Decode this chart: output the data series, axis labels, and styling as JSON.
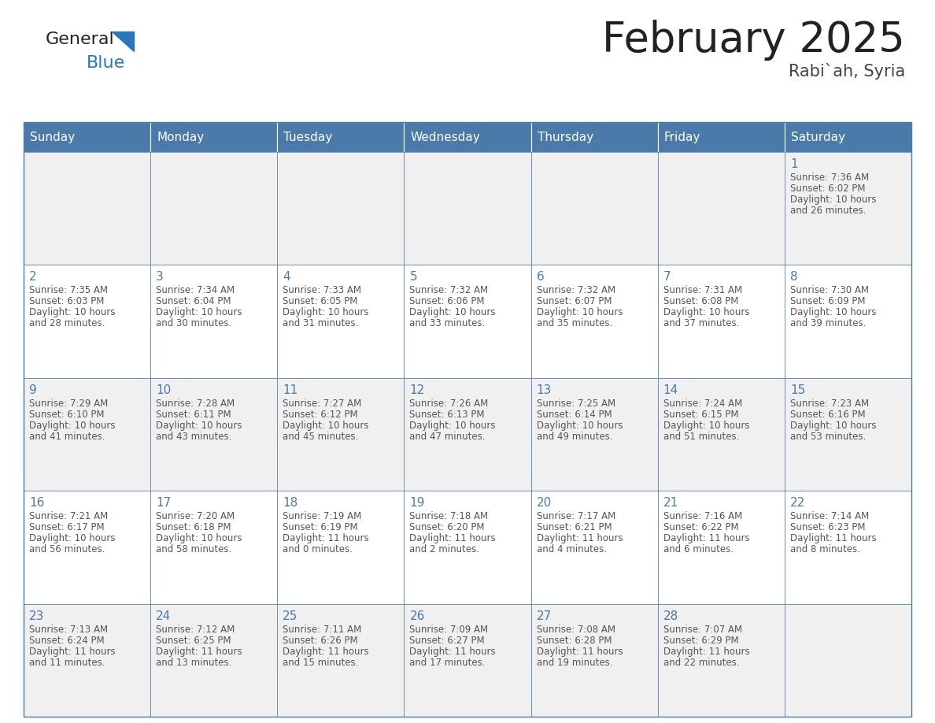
{
  "title": "February 2025",
  "subtitle": "Rabi`ah, Syria",
  "days_of_week": [
    "Sunday",
    "Monday",
    "Tuesday",
    "Wednesday",
    "Thursday",
    "Friday",
    "Saturday"
  ],
  "header_bg": "#4a7aaa",
  "header_text": "#ffffff",
  "cell_bg_even": "#f0f0f0",
  "cell_bg_odd": "#ffffff",
  "cell_border": "#4a7aaa",
  "day_number_color": "#4a7aaa",
  "text_color": "#555555",
  "title_color": "#222222",
  "subtitle_color": "#444444",
  "logo_general_color": "#222222",
  "logo_blue_color": "#2878be",
  "calendar_data": [
    [
      null,
      null,
      null,
      null,
      null,
      null,
      {
        "day": 1,
        "sunrise": "7:36 AM",
        "sunset": "6:02 PM",
        "daylight_hours": 10,
        "daylight_minutes": 26
      }
    ],
    [
      {
        "day": 2,
        "sunrise": "7:35 AM",
        "sunset": "6:03 PM",
        "daylight_hours": 10,
        "daylight_minutes": 28
      },
      {
        "day": 3,
        "sunrise": "7:34 AM",
        "sunset": "6:04 PM",
        "daylight_hours": 10,
        "daylight_minutes": 30
      },
      {
        "day": 4,
        "sunrise": "7:33 AM",
        "sunset": "6:05 PM",
        "daylight_hours": 10,
        "daylight_minutes": 31
      },
      {
        "day": 5,
        "sunrise": "7:32 AM",
        "sunset": "6:06 PM",
        "daylight_hours": 10,
        "daylight_minutes": 33
      },
      {
        "day": 6,
        "sunrise": "7:32 AM",
        "sunset": "6:07 PM",
        "daylight_hours": 10,
        "daylight_minutes": 35
      },
      {
        "day": 7,
        "sunrise": "7:31 AM",
        "sunset": "6:08 PM",
        "daylight_hours": 10,
        "daylight_minutes": 37
      },
      {
        "day": 8,
        "sunrise": "7:30 AM",
        "sunset": "6:09 PM",
        "daylight_hours": 10,
        "daylight_minutes": 39
      }
    ],
    [
      {
        "day": 9,
        "sunrise": "7:29 AM",
        "sunset": "6:10 PM",
        "daylight_hours": 10,
        "daylight_minutes": 41
      },
      {
        "day": 10,
        "sunrise": "7:28 AM",
        "sunset": "6:11 PM",
        "daylight_hours": 10,
        "daylight_minutes": 43
      },
      {
        "day": 11,
        "sunrise": "7:27 AM",
        "sunset": "6:12 PM",
        "daylight_hours": 10,
        "daylight_minutes": 45
      },
      {
        "day": 12,
        "sunrise": "7:26 AM",
        "sunset": "6:13 PM",
        "daylight_hours": 10,
        "daylight_minutes": 47
      },
      {
        "day": 13,
        "sunrise": "7:25 AM",
        "sunset": "6:14 PM",
        "daylight_hours": 10,
        "daylight_minutes": 49
      },
      {
        "day": 14,
        "sunrise": "7:24 AM",
        "sunset": "6:15 PM",
        "daylight_hours": 10,
        "daylight_minutes": 51
      },
      {
        "day": 15,
        "sunrise": "7:23 AM",
        "sunset": "6:16 PM",
        "daylight_hours": 10,
        "daylight_minutes": 53
      }
    ],
    [
      {
        "day": 16,
        "sunrise": "7:21 AM",
        "sunset": "6:17 PM",
        "daylight_hours": 10,
        "daylight_minutes": 56
      },
      {
        "day": 17,
        "sunrise": "7:20 AM",
        "sunset": "6:18 PM",
        "daylight_hours": 10,
        "daylight_minutes": 58
      },
      {
        "day": 18,
        "sunrise": "7:19 AM",
        "sunset": "6:19 PM",
        "daylight_hours": 11,
        "daylight_minutes": 0
      },
      {
        "day": 19,
        "sunrise": "7:18 AM",
        "sunset": "6:20 PM",
        "daylight_hours": 11,
        "daylight_minutes": 2
      },
      {
        "day": 20,
        "sunrise": "7:17 AM",
        "sunset": "6:21 PM",
        "daylight_hours": 11,
        "daylight_minutes": 4
      },
      {
        "day": 21,
        "sunrise": "7:16 AM",
        "sunset": "6:22 PM",
        "daylight_hours": 11,
        "daylight_minutes": 6
      },
      {
        "day": 22,
        "sunrise": "7:14 AM",
        "sunset": "6:23 PM",
        "daylight_hours": 11,
        "daylight_minutes": 8
      }
    ],
    [
      {
        "day": 23,
        "sunrise": "7:13 AM",
        "sunset": "6:24 PM",
        "daylight_hours": 11,
        "daylight_minutes": 11
      },
      {
        "day": 24,
        "sunrise": "7:12 AM",
        "sunset": "6:25 PM",
        "daylight_hours": 11,
        "daylight_minutes": 13
      },
      {
        "day": 25,
        "sunrise": "7:11 AM",
        "sunset": "6:26 PM",
        "daylight_hours": 11,
        "daylight_minutes": 15
      },
      {
        "day": 26,
        "sunrise": "7:09 AM",
        "sunset": "6:27 PM",
        "daylight_hours": 11,
        "daylight_minutes": 17
      },
      {
        "day": 27,
        "sunrise": "7:08 AM",
        "sunset": "6:28 PM",
        "daylight_hours": 11,
        "daylight_minutes": 19
      },
      {
        "day": 28,
        "sunrise": "7:07 AM",
        "sunset": "6:29 PM",
        "daylight_hours": 11,
        "daylight_minutes": 22
      },
      null
    ]
  ]
}
